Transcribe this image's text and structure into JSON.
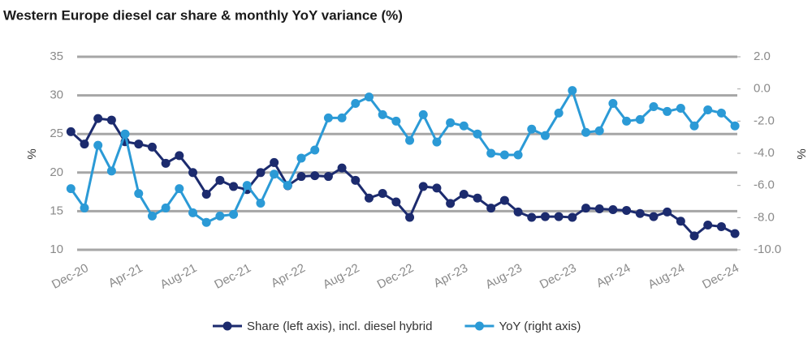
{
  "chart_data": {
    "type": "line",
    "title": "Western Europe diesel car share & monthly YoY variance (%)",
    "ylabel": "%",
    "y2label": "%",
    "categories": [
      null,
      "Dec-20",
      null,
      null,
      null,
      "Apr-21",
      null,
      null,
      null,
      "Aug-21",
      null,
      null,
      null,
      "Dec-21",
      null,
      null,
      null,
      "Apr-22",
      null,
      null,
      null,
      "Aug-22",
      null,
      null,
      null,
      "Dec-22",
      null,
      null,
      null,
      "Apr-23",
      null,
      null,
      null,
      "Aug-23",
      null,
      null,
      null,
      "Dec-23",
      null,
      null,
      null,
      "Apr-24",
      null,
      null,
      null,
      "Aug-24",
      null,
      null,
      null,
      "Dec-24"
    ],
    "series": [
      {
        "name": "Share (left axis), incl. diesel hybrid",
        "color": "#1c2b6e",
        "axis": "y",
        "values": [
          25.3,
          23.7,
          27,
          26.8,
          24,
          23.7,
          23.3,
          21.2,
          22.2,
          20,
          17.2,
          19,
          18.2,
          17.8,
          20,
          21.3,
          18.3,
          19.5,
          19.6,
          19.5,
          20.6,
          19,
          16.7,
          17.3,
          16.2,
          14.2,
          18.2,
          18,
          16,
          17.2,
          16.7,
          15.4,
          16.4,
          14.9,
          14.2,
          14.3,
          14.3,
          14.2,
          15.4,
          15.3,
          15.2,
          15.1,
          14.7,
          14.3,
          14.9,
          13.7,
          11.8,
          13.2,
          13,
          12.1
        ]
      },
      {
        "name": "YoY (right axis)",
        "color": "#2b9ad6",
        "axis": "y2",
        "values": [
          -6.2,
          -7.4,
          -3.5,
          -5.1,
          -2.8,
          -6.5,
          -7.9,
          -7.4,
          -6.2,
          -7.7,
          -8.3,
          -7.9,
          -7.8,
          -6.0,
          -7.1,
          -5.3,
          -6.0,
          -4.3,
          -3.8,
          -1.8,
          -1.8,
          -0.9,
          -0.5,
          -1.6,
          -2.0,
          -3.2,
          -1.6,
          -3.3,
          -2.1,
          -2.3,
          -2.8,
          -4.0,
          -4.1,
          -4.1,
          -2.5,
          -2.9,
          -1.5,
          -0.1,
          -2.7,
          -2.6,
          -0.9,
          -2.0,
          -1.9,
          -1.1,
          -1.4,
          -1.2,
          -2.3,
          -1.3,
          -1.5,
          -2.3
        ]
      }
    ],
    "ylim": [
      10,
      35
    ],
    "yticks": [
      10,
      15,
      20,
      25,
      30,
      35
    ],
    "y2lim": [
      -10,
      2
    ],
    "y2ticks": [
      {
        "value": -10,
        "label": "-10.0"
      },
      {
        "value": -8,
        "label": "-8.0"
      },
      {
        "value": -6,
        "label": "-6.0"
      },
      {
        "value": -4,
        "label": "-4.0"
      },
      {
        "value": -2,
        "label": "-2.0"
      },
      {
        "value": 0,
        "label": "0.0"
      },
      {
        "value": 2,
        "label": "2.0"
      }
    ],
    "grid": true,
    "legend": "bottom"
  }
}
